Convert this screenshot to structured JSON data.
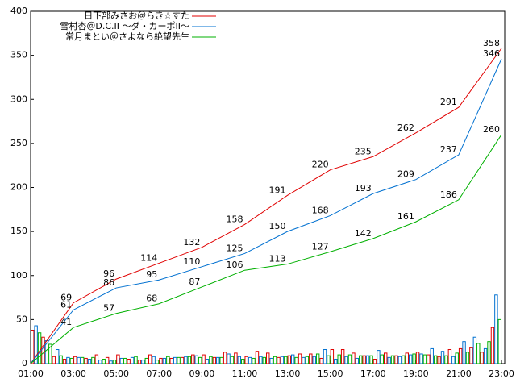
{
  "chart_data": {
    "type": "line",
    "x": [
      1,
      3,
      5,
      7,
      9,
      11,
      13,
      15,
      17,
      19,
      21,
      23
    ],
    "xlim": [
      1,
      23.15
    ],
    "xticks": [
      {
        "value": 1,
        "label": "01:00"
      },
      {
        "value": 3,
        "label": "03:00"
      },
      {
        "value": 5,
        "label": "05:00"
      },
      {
        "value": 7,
        "label": "07:00"
      },
      {
        "value": 9,
        "label": "09:00"
      },
      {
        "value": 11,
        "label": "11:00"
      },
      {
        "value": 13,
        "label": "13:00"
      },
      {
        "value": 15,
        "label": "15:00"
      },
      {
        "value": 17,
        "label": "17:00"
      },
      {
        "value": 19,
        "label": "19:00"
      },
      {
        "value": 21,
        "label": "21:00"
      },
      {
        "value": 23,
        "label": "23:00"
      }
    ],
    "ylim": [
      0,
      400
    ],
    "yticks": [
      0,
      50,
      100,
      150,
      200,
      250,
      300,
      350,
      400
    ],
    "legend": "top-left",
    "series": [
      {
        "name": "日下部みさお＠らき☆すた",
        "color": "#e00000",
        "values": [
          0,
          69,
          96,
          114,
          132,
          158,
          191,
          220,
          235,
          262,
          291,
          358
        ],
        "value_labels": [
          null,
          "69",
          "96",
          "114",
          "132",
          "158",
          "191",
          "220",
          "235",
          "262",
          "291",
          "358"
        ]
      },
      {
        "name": "雪村杏＠D.C.II ～ダ・カーポII～",
        "color": "#0070d0",
        "values": [
          0,
          61,
          86,
          95,
          110,
          125,
          150,
          168,
          193,
          209,
          237,
          346
        ],
        "value_labels": [
          null,
          "61",
          "86",
          "95",
          "110",
          "125",
          "150",
          "168",
          "193",
          "209",
          "237",
          "346"
        ]
      },
      {
        "name": "常月まとい＠さよなら絶望先生",
        "color": "#00b000",
        "values": [
          0,
          41,
          57,
          68,
          87,
          106,
          113,
          127,
          142,
          161,
          186,
          260
        ],
        "value_labels": [
          null,
          "41",
          "57",
          "68",
          "87",
          "106",
          "113",
          "127",
          "142",
          "161",
          "186",
          "260"
        ]
      }
    ],
    "bar_x": [
      1,
      1.5,
      2,
      2.5,
      3,
      3.5,
      4,
      4.5,
      5,
      5.5,
      6,
      6.5,
      7,
      7.5,
      8,
      8.5,
      9,
      9.5,
      10,
      10.5,
      11,
      11.5,
      12,
      12.5,
      13,
      13.5,
      14,
      14.5,
      15,
      15.5,
      16,
      16.5,
      17,
      17.5,
      18,
      18.5,
      19,
      19.5,
      20,
      20.5,
      21,
      21.5,
      22,
      22.5
    ],
    "bar_series": [
      {
        "color": "#e00000",
        "values": [
          38,
          30,
          8,
          5,
          8,
          6,
          10,
          7,
          10,
          5,
          4,
          10,
          6,
          6,
          7,
          10,
          10,
          7,
          13,
          12,
          8,
          14,
          12,
          7,
          9,
          11,
          11,
          6,
          16,
          16,
          12,
          9,
          5,
          12,
          9,
          12,
          13,
          10,
          8,
          16,
          17,
          18,
          13,
          41
        ]
      },
      {
        "color": "#0070d0",
        "values": [
          43,
          26,
          16,
          7,
          7,
          5,
          4,
          3,
          6,
          7,
          4,
          8,
          6,
          7,
          8,
          9,
          5,
          7,
          11,
          8,
          7,
          8,
          6,
          8,
          10,
          7,
          8,
          16,
          5,
          8,
          6,
          9,
          15,
          7,
          8,
          10,
          11,
          17,
          14,
          8,
          25,
          30,
          17,
          78
        ]
      },
      {
        "color": "#00b000",
        "values": [
          35,
          22,
          9,
          6,
          7,
          7,
          5,
          4,
          6,
          8,
          6,
          4,
          8,
          7,
          8,
          7,
          8,
          7,
          8,
          5,
          6,
          7,
          8,
          8,
          7,
          8,
          11,
          9,
          10,
          10,
          9,
          9,
          10,
          9,
          9,
          11,
          10,
          9,
          9,
          12,
          13,
          23,
          25,
          50
        ]
      }
    ]
  }
}
